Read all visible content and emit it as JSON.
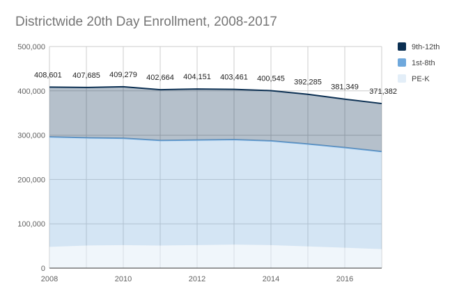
{
  "chart_data": {
    "type": "area",
    "stacked": true,
    "title": "Districtwide 20th Day Enrollment, 2008-2017",
    "xlabel": "",
    "ylabel": "",
    "x": [
      2008,
      2009,
      2010,
      2011,
      2012,
      2013,
      2014,
      2015,
      2016,
      2017
    ],
    "x_ticks": [
      "2008",
      "2010",
      "2012",
      "2014",
      "2016"
    ],
    "y_ticks": [
      "0",
      "100,000",
      "200,000",
      "300,000",
      "400,000",
      "500,000"
    ],
    "ylim": [
      0,
      500000
    ],
    "xlim": [
      2008,
      2017
    ],
    "grid": true,
    "legend_position": "right",
    "series": [
      {
        "name": "PE-K",
        "color": "#e3eef8",
        "values": [
          48000,
          51000,
          52000,
          51000,
          52000,
          53000,
          52000,
          49000,
          46000,
          43000
        ]
      },
      {
        "name": "1st-8th",
        "color": "#6fa8dc",
        "values": [
          248000,
          243000,
          241000,
          237000,
          237000,
          237000,
          235000,
          231000,
          226000,
          220000
        ]
      },
      {
        "name": "9th-12th",
        "color": "#0b2f52",
        "values": [
          112601,
          113685,
          116279,
          114664,
          115151,
          113461,
          113545,
          112285,
          109349,
          108382
        ]
      }
    ],
    "totals": [
      408601,
      407685,
      409279,
      402664,
      404151,
      403461,
      400545,
      392285,
      381349,
      371382
    ],
    "total_labels": [
      "408,601",
      "407,685",
      "409,279",
      "402,664",
      "404,151",
      "403,461",
      "400,545",
      "392,285",
      "381,349",
      "371,382"
    ],
    "legend": [
      "9th-12th",
      "1st-8th",
      "PE-K"
    ]
  }
}
